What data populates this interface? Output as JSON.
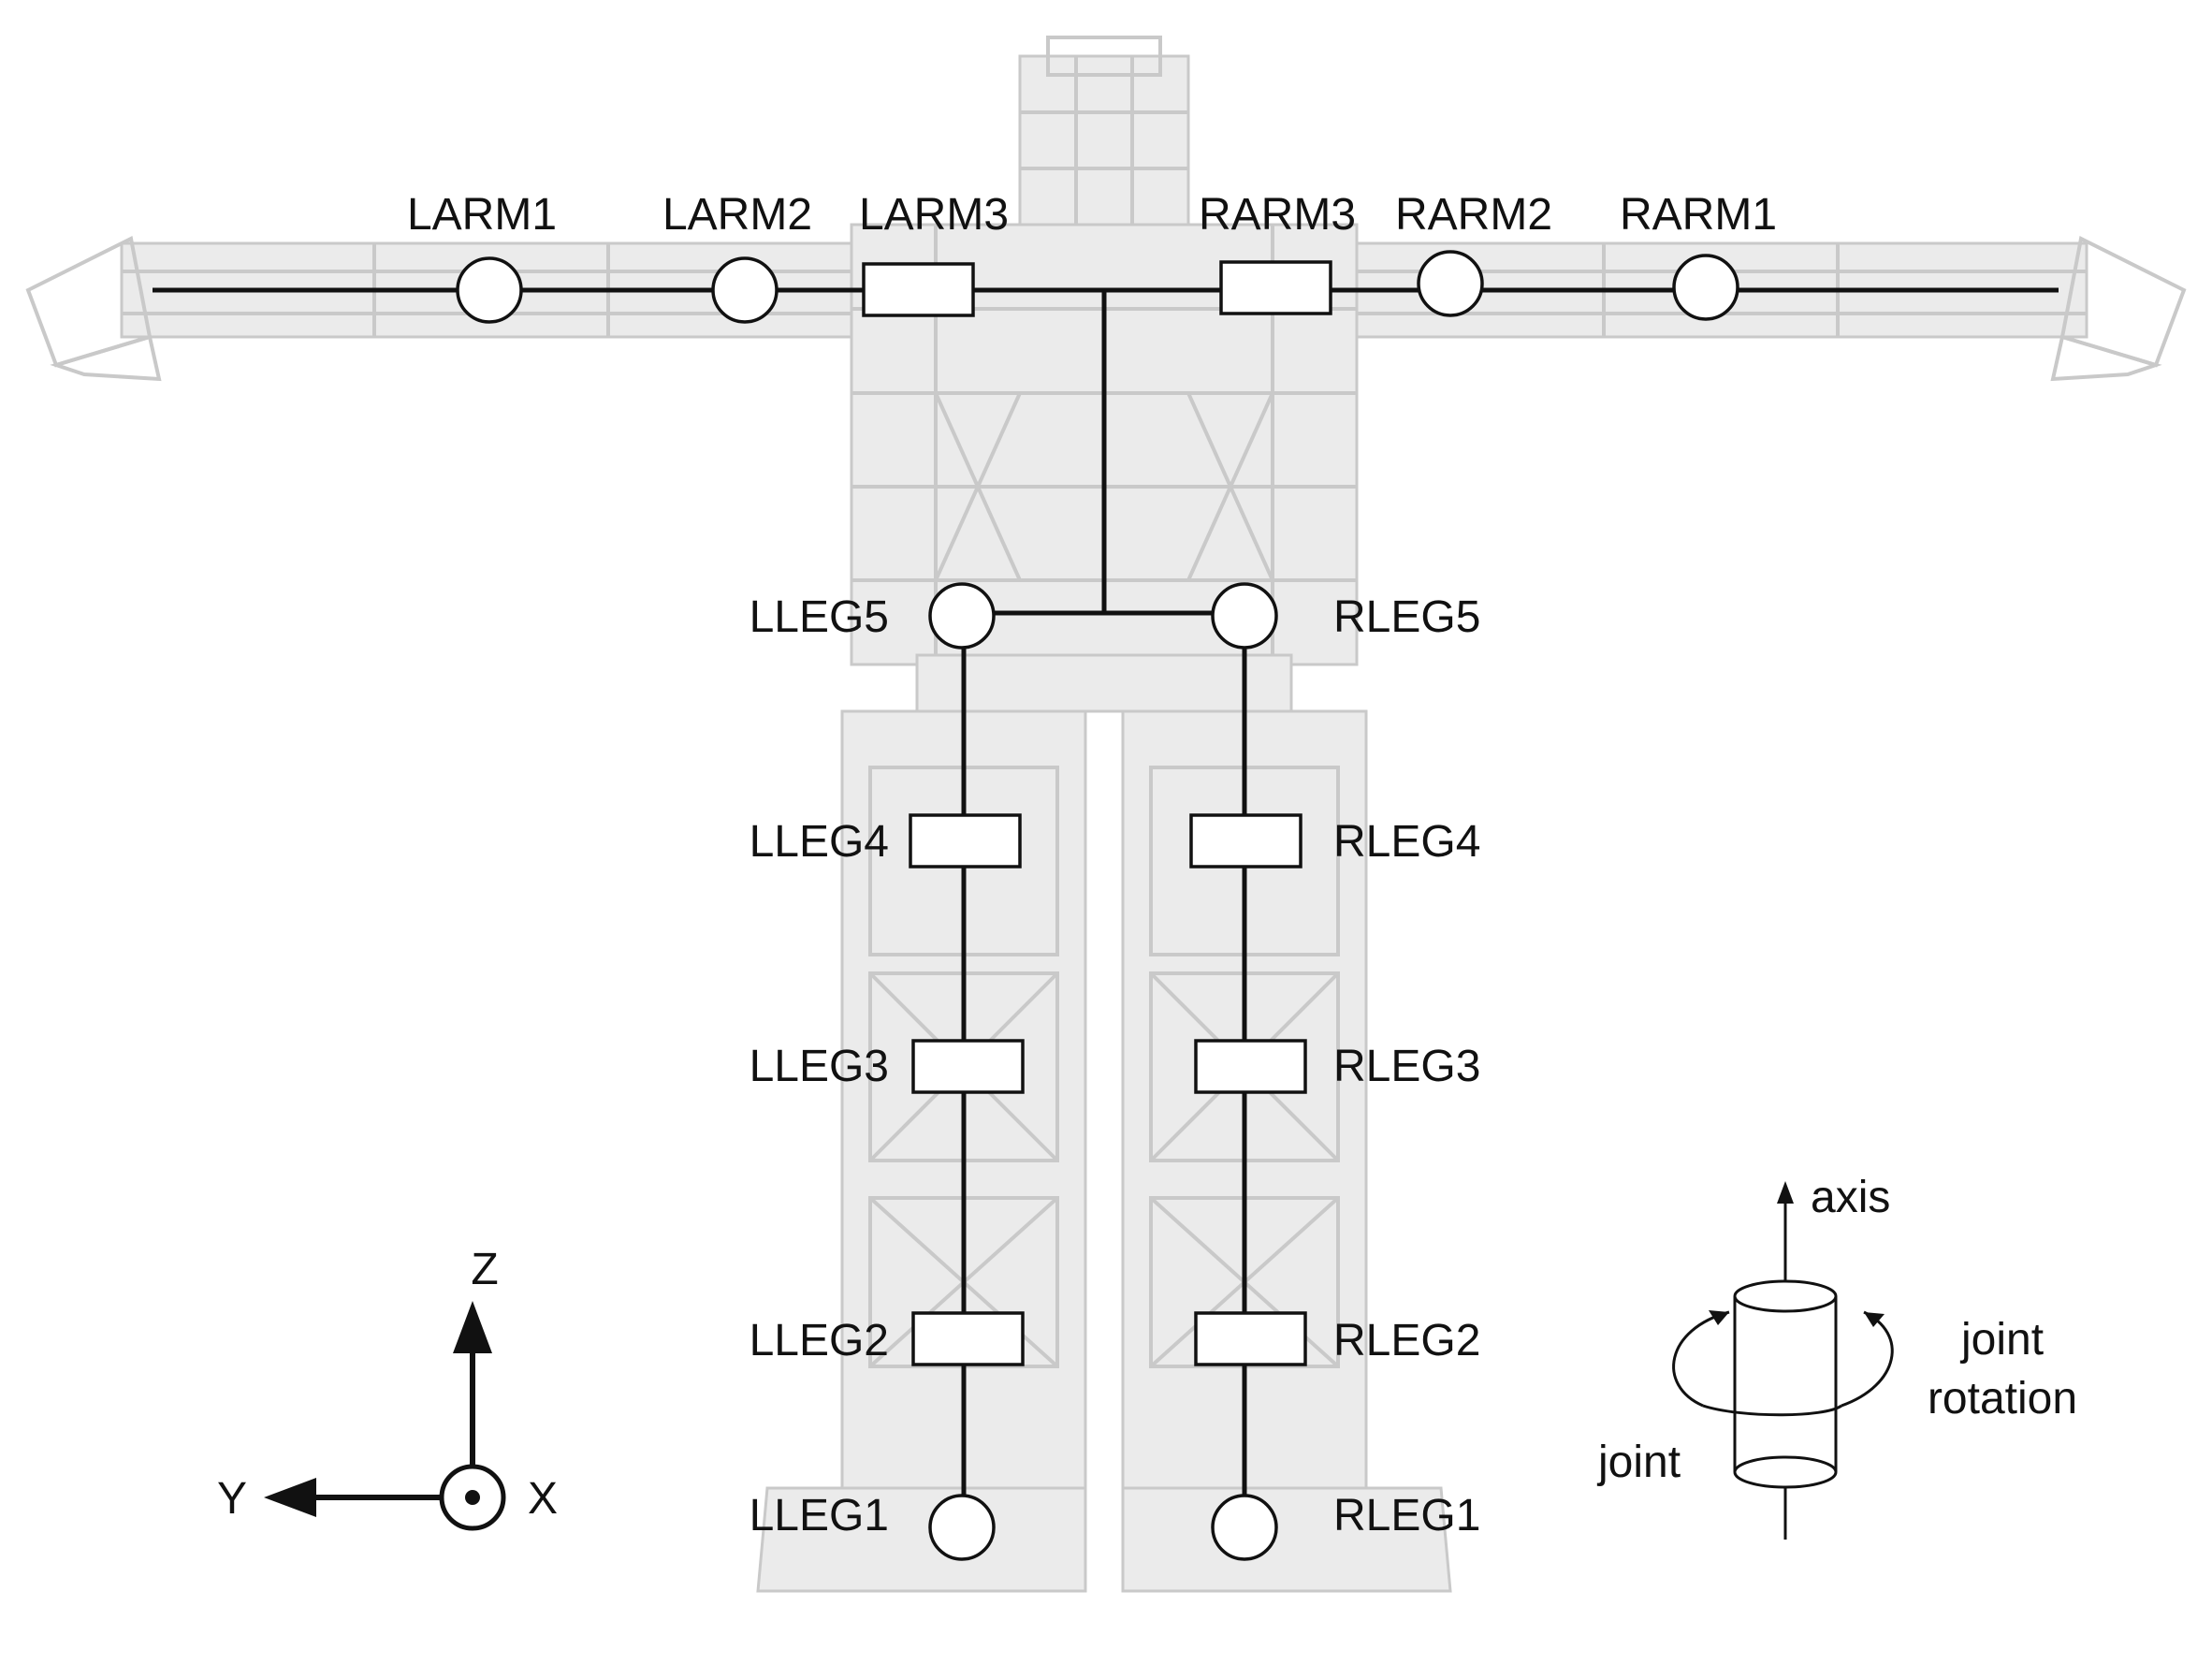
{
  "joints": {
    "larm1": "LARM1",
    "larm2": "LARM2",
    "larm3": "LARM3",
    "rarm3": "RARM3",
    "rarm2": "RARM2",
    "rarm1": "RARM1",
    "lleg5": "LLEG5",
    "lleg4": "LLEG4",
    "lleg3": "LLEG3",
    "lleg2": "LLEG2",
    "lleg1": "LLEG1",
    "rleg5": "RLEG5",
    "rleg4": "RLEG4",
    "rleg3": "RLEG3",
    "rleg2": "RLEG2",
    "rleg1": "RLEG1"
  },
  "coordinate_frame": {
    "z": "Z",
    "y": "Y",
    "x": "X"
  },
  "legend": {
    "axis": "axis",
    "joint": "joint",
    "rotation_line1": "joint",
    "rotation_line2": "rotation"
  },
  "colors": {
    "link": "#111111",
    "robot_silhouette": "#c9c9c9"
  }
}
